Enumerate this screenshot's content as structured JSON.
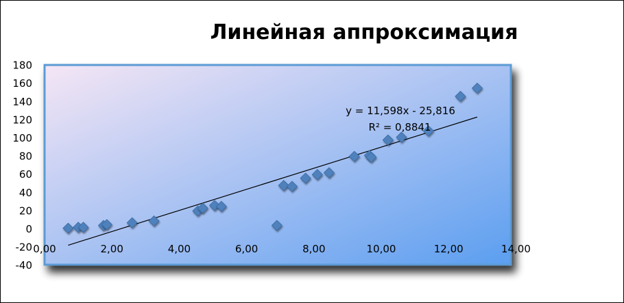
{
  "chart_data": {
    "type": "scatter",
    "title": "Линейная аппроксимация",
    "xlabel": "",
    "ylabel": "",
    "xlim": [
      0,
      14
    ],
    "ylim": [
      -40,
      180
    ],
    "x_ticks": [
      "0,00",
      "2,00",
      "4,00",
      "6,00",
      "8,00",
      "10,00",
      "12,00",
      "14,00"
    ],
    "y_ticks": [
      "-40",
      "-20",
      "0",
      "20",
      "40",
      "60",
      "80",
      "100",
      "120",
      "140",
      "160",
      "180"
    ],
    "grid": false,
    "legend": "none",
    "series": [
      {
        "marker": "diamond",
        "color": "#4F81BD",
        "points": [
          [
            0.7,
            1
          ],
          [
            1.0,
            2
          ],
          [
            1.15,
            2
          ],
          [
            1.75,
            4
          ],
          [
            1.85,
            5
          ],
          [
            2.6,
            7
          ],
          [
            3.25,
            9
          ],
          [
            4.55,
            20
          ],
          [
            4.7,
            23
          ],
          [
            5.05,
            26
          ],
          [
            5.25,
            25
          ],
          [
            6.9,
            4
          ],
          [
            7.1,
            48
          ],
          [
            7.35,
            47
          ],
          [
            7.75,
            56
          ],
          [
            8.1,
            60
          ],
          [
            8.45,
            62
          ],
          [
            9.2,
            80
          ],
          [
            9.65,
            81
          ],
          [
            9.7,
            79
          ],
          [
            10.2,
            98
          ],
          [
            10.6,
            101
          ],
          [
            11.4,
            108
          ],
          [
            12.35,
            146
          ],
          [
            12.85,
            155
          ]
        ]
      }
    ],
    "trendline": {
      "type": "linear",
      "slope": 11.598,
      "intercept": -25.816,
      "x_range": [
        0.7,
        12.85
      ],
      "equation_label": "y = 11,598x - 25,816",
      "r2_label": "R² = 0,8841",
      "color": "#000000"
    },
    "plot_area_gradient": [
      "#F5E6F5",
      "#5B9EF0"
    ]
  }
}
